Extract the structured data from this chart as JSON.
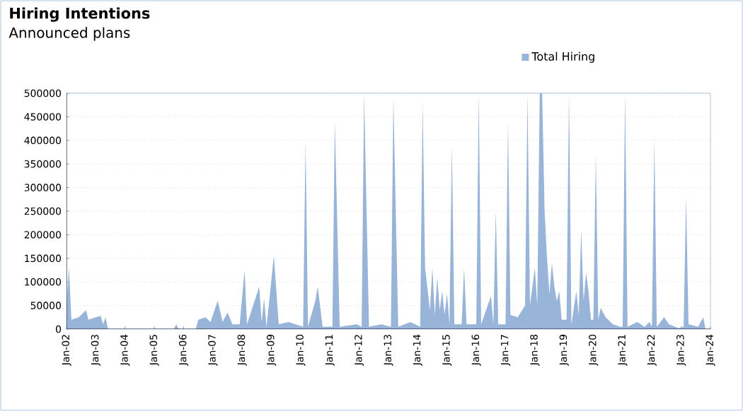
{
  "chart_data": {
    "type": "area",
    "title": "Hiring Intentions",
    "subtitle": "Announced plans",
    "x": [
      "2002-01",
      "2002-02",
      "2002-03",
      "2002-06",
      "2002-09",
      "2002-10",
      "2003-01",
      "2003-03",
      "2003-04",
      "2003-05",
      "2003-06",
      "2005-09",
      "2005-10",
      "2005-11",
      "2006-06",
      "2006-07",
      "2006-10",
      "2006-12",
      "2007-03",
      "2007-05",
      "2007-07",
      "2007-09",
      "2007-12",
      "2008-02",
      "2008-03",
      "2008-08",
      "2008-09",
      "2008-10",
      "2008-11",
      "2009-02",
      "2009-04",
      "2009-08",
      "2010-02",
      "2010-03",
      "2010-04",
      "2010-07",
      "2010-08",
      "2010-10",
      "2011-02",
      "2011-03",
      "2011-05",
      "2011-12",
      "2012-02",
      "2012-03",
      "2012-05",
      "2012-10",
      "2013-02",
      "2013-03",
      "2013-05",
      "2013-10",
      "2014-02",
      "2014-03",
      "2014-04",
      "2014-06",
      "2014-07",
      "2014-08",
      "2014-09",
      "2014-10",
      "2014-11",
      "2014-12",
      "2015-01",
      "2015-02",
      "2015-03",
      "2015-04",
      "2015-07",
      "2015-08",
      "2015-09",
      "2016-01",
      "2016-02",
      "2016-03",
      "2016-07",
      "2016-08",
      "2016-09",
      "2016-10",
      "2017-01",
      "2017-02",
      "2017-03",
      "2017-06",
      "2017-09",
      "2017-10",
      "2017-11",
      "2018-01",
      "2018-02",
      "2018-03",
      "2018-04",
      "2018-05",
      "2018-06",
      "2018-07",
      "2018-08",
      "2018-09",
      "2018-10",
      "2018-11",
      "2018-12",
      "2019-02",
      "2019-03",
      "2019-04",
      "2019-06",
      "2019-07",
      "2019-08",
      "2019-09",
      "2019-10",
      "2019-11",
      "2019-12",
      "2020-01",
      "2020-02",
      "2020-03",
      "2020-04",
      "2020-06",
      "2020-09",
      "2020-12",
      "2021-01",
      "2021-02",
      "2021-03",
      "2021-07",
      "2021-10",
      "2021-12",
      "2022-01",
      "2022-02",
      "2022-03",
      "2022-06",
      "2022-08",
      "2022-12",
      "2023-02",
      "2023-03",
      "2023-04",
      "2023-08",
      "2023-10",
      "2023-11"
    ],
    "series": [
      {
        "name": "Total Hiring",
        "color": "#98b4d8",
        "values": [
          55000,
          130000,
          20000,
          25000,
          40000,
          20000,
          25000,
          28000,
          10000,
          25000,
          0,
          0,
          10000,
          0,
          0,
          20000,
          25000,
          15000,
          60000,
          15000,
          35000,
          10000,
          10000,
          125000,
          10000,
          90000,
          15000,
          65000,
          5000,
          155000,
          10000,
          15000,
          5000,
          400000,
          5000,
          60000,
          90000,
          5000,
          5000,
          440000,
          5000,
          10000,
          5000,
          500000,
          5000,
          10000,
          5000,
          490000,
          5000,
          15000,
          5000,
          480000,
          130000,
          40000,
          130000,
          30000,
          110000,
          40000,
          80000,
          30000,
          75000,
          10000,
          390000,
          10000,
          10000,
          130000,
          10000,
          10000,
          500000,
          10000,
          70000,
          10000,
          250000,
          10000,
          10000,
          440000,
          30000,
          25000,
          50000,
          500000,
          50000,
          130000,
          50000,
          500000,
          500000,
          250000,
          150000,
          75000,
          140000,
          90000,
          60000,
          80000,
          20000,
          20000,
          500000,
          10000,
          80000,
          30000,
          210000,
          60000,
          120000,
          80000,
          20000,
          20000,
          370000,
          20000,
          45000,
          25000,
          10000,
          5000,
          5000,
          500000,
          5000,
          15000,
          5000,
          15000,
          5000,
          400000,
          5000,
          25000,
          10000,
          2000,
          5000,
          280000,
          10000,
          5000,
          25000,
          0
        ]
      }
    ],
    "xlim": [
      "2002-01",
      "2024-01"
    ],
    "xticks": [
      {
        "value": "2002-01",
        "label": "Jan-02"
      },
      {
        "value": "2003-01",
        "label": "Jan-03"
      },
      {
        "value": "2004-01",
        "label": "Jan-04"
      },
      {
        "value": "2005-01",
        "label": "Jan-05"
      },
      {
        "value": "2006-01",
        "label": "Jan-06"
      },
      {
        "value": "2007-01",
        "label": "Jan-07"
      },
      {
        "value": "2008-01",
        "label": "Jan-08"
      },
      {
        "value": "2009-01",
        "label": "Jan-09"
      },
      {
        "value": "2010-01",
        "label": "Jan-10"
      },
      {
        "value": "2011-01",
        "label": "Jan-11"
      },
      {
        "value": "2012-01",
        "label": "Jan-12"
      },
      {
        "value": "2013-01",
        "label": "Jan-13"
      },
      {
        "value": "2014-01",
        "label": "Jan-14"
      },
      {
        "value": "2015-01",
        "label": "Jan-15"
      },
      {
        "value": "2016-01",
        "label": "Jan-16"
      },
      {
        "value": "2017-01",
        "label": "Jan-17"
      },
      {
        "value": "2018-01",
        "label": "Jan-18"
      },
      {
        "value": "2019-01",
        "label": "Jan-19"
      },
      {
        "value": "2020-01",
        "label": "Jan-20"
      },
      {
        "value": "2021-01",
        "label": "Jan-21"
      },
      {
        "value": "2022-01",
        "label": "Jan-22"
      },
      {
        "value": "2023-01",
        "label": "Jan-23"
      },
      {
        "value": "2024-01",
        "label": "Jan-24"
      }
    ],
    "ylim": [
      0,
      500000
    ],
    "yticks": [
      0,
      50000,
      100000,
      150000,
      200000,
      250000,
      300000,
      350000,
      400000,
      450000,
      500000
    ],
    "grid": "y",
    "legend": "top right"
  }
}
